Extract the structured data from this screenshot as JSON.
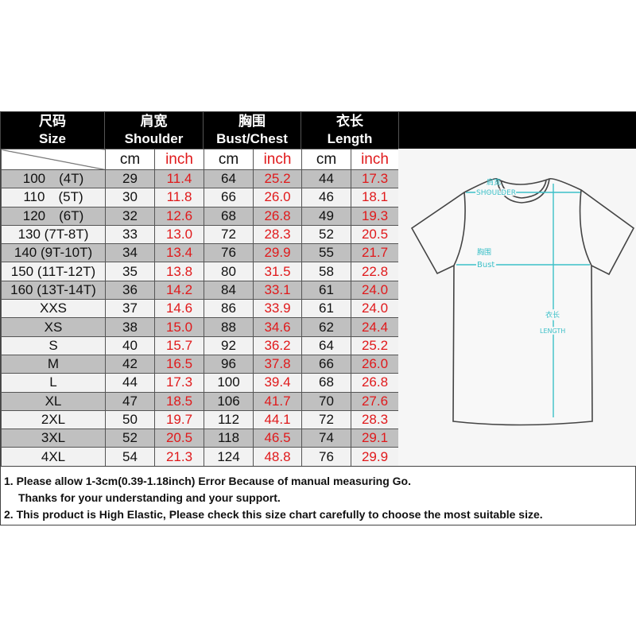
{
  "header": {
    "size": {
      "zh": "尺码",
      "en": "Size"
    },
    "shoulder": {
      "zh": "肩宽",
      "en": "Shoulder"
    },
    "bust": {
      "zh": "胸围",
      "en": "Bust/Chest"
    },
    "length": {
      "zh": "衣长",
      "en": "Length"
    }
  },
  "units": {
    "cm": "cm",
    "inch": "inch"
  },
  "rows": [
    {
      "size": "100　(4T)",
      "s_cm": "29",
      "s_in": "11.4",
      "b_cm": "64",
      "b_in": "25.2",
      "l_cm": "44",
      "l_in": "17.3"
    },
    {
      "size": "110　(5T)",
      "s_cm": "30",
      "s_in": "11.8",
      "b_cm": "66",
      "b_in": "26.0",
      "l_cm": "46",
      "l_in": "18.1"
    },
    {
      "size": "120　(6T)",
      "s_cm": "32",
      "s_in": "12.6",
      "b_cm": "68",
      "b_in": "26.8",
      "l_cm": "49",
      "l_in": "19.3"
    },
    {
      "size": "130 (7T-8T)",
      "s_cm": "33",
      "s_in": "13.0",
      "b_cm": "72",
      "b_in": "28.3",
      "l_cm": "52",
      "l_in": "20.5"
    },
    {
      "size": "140 (9T-10T)",
      "s_cm": "34",
      "s_in": "13.4",
      "b_cm": "76",
      "b_in": "29.9",
      "l_cm": "55",
      "l_in": "21.7"
    },
    {
      "size": "150 (11T-12T)",
      "s_cm": "35",
      "s_in": "13.8",
      "b_cm": "80",
      "b_in": "31.5",
      "l_cm": "58",
      "l_in": "22.8"
    },
    {
      "size": "160 (13T-14T)",
      "s_cm": "36",
      "s_in": "14.2",
      "b_cm": "84",
      "b_in": "33.1",
      "l_cm": "61",
      "l_in": "24.0"
    },
    {
      "size": "XXS",
      "s_cm": "37",
      "s_in": "14.6",
      "b_cm": "86",
      "b_in": "33.9",
      "l_cm": "61",
      "l_in": "24.0"
    },
    {
      "size": "XS",
      "s_cm": "38",
      "s_in": "15.0",
      "b_cm": "88",
      "b_in": "34.6",
      "l_cm": "62",
      "l_in": "24.4"
    },
    {
      "size": "S",
      "s_cm": "40",
      "s_in": "15.7",
      "b_cm": "92",
      "b_in": "36.2",
      "l_cm": "64",
      "l_in": "25.2"
    },
    {
      "size": "M",
      "s_cm": "42",
      "s_in": "16.5",
      "b_cm": "96",
      "b_in": "37.8",
      "l_cm": "66",
      "l_in": "26.0"
    },
    {
      "size": "L",
      "s_cm": "44",
      "s_in": "17.3",
      "b_cm": "100",
      "b_in": "39.4",
      "l_cm": "68",
      "l_in": "26.8"
    },
    {
      "size": "XL",
      "s_cm": "47",
      "s_in": "18.5",
      "b_cm": "106",
      "b_in": "41.7",
      "l_cm": "70",
      "l_in": "27.6"
    },
    {
      "size": "2XL",
      "s_cm": "50",
      "s_in": "19.7",
      "b_cm": "112",
      "b_in": "44.1",
      "l_cm": "72",
      "l_in": "28.3"
    },
    {
      "size": "3XL",
      "s_cm": "52",
      "s_in": "20.5",
      "b_cm": "118",
      "b_in": "46.5",
      "l_cm": "74",
      "l_in": "29.1"
    },
    {
      "size": "4XL",
      "s_cm": "54",
      "s_in": "21.3",
      "b_cm": "124",
      "b_in": "48.8",
      "l_cm": "76",
      "l_in": "29.9"
    }
  ],
  "diagram": {
    "shoulder_zh": "肩宽",
    "shoulder_en": "SHOULDER",
    "bust_zh": "胸围",
    "bust_en": "Bust",
    "length_zh": "衣长",
    "length_en": "LENGTH",
    "measure_color": "#3cc0c8"
  },
  "notes": {
    "line1": "1. Please allow 1-3cm(0.39-1.18inch) Error Because of manual measuring Go.",
    "line1b": "Thanks for your understanding  and your support.",
    "line2": "2. This product is High Elastic, Please check this size chart carefully to choose the most suitable size."
  },
  "colors": {
    "inch_text": "#e0191b",
    "header_bg": "#000000",
    "row_gray": "#c0c0c0",
    "row_light": "#f2f2f2"
  }
}
